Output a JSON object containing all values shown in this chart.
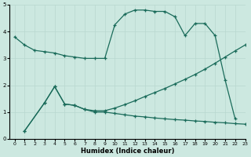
{
  "xlabel": "Humidex (Indice chaleur)",
  "xlim": [
    -0.5,
    23
  ],
  "ylim": [
    0,
    5
  ],
  "xticks": [
    0,
    1,
    2,
    3,
    4,
    5,
    6,
    7,
    8,
    9,
    10,
    11,
    12,
    13,
    14,
    15,
    16,
    17,
    18,
    19,
    20,
    21,
    22,
    23
  ],
  "yticks": [
    0,
    1,
    2,
    3,
    4,
    5
  ],
  "bg_color": "#cce8e0",
  "line_color": "#1a6b5a",
  "grid_color": "#b8d8cf",
  "line1": {
    "x": [
      0,
      1,
      2,
      3,
      4,
      5,
      6,
      7,
      8,
      9,
      10,
      11,
      12,
      13,
      14,
      15,
      16,
      17,
      18,
      19,
      20,
      21,
      22
    ],
    "y": [
      3.8,
      3.5,
      3.3,
      3.25,
      3.2,
      3.1,
      3.05,
      3.0,
      3.0,
      3.0,
      4.25,
      4.65,
      4.8,
      4.8,
      4.75,
      4.75,
      4.55,
      3.85,
      4.3,
      4.3,
      3.85,
      2.2,
      0.75
    ]
  },
  "line2": {
    "x": [
      1,
      3,
      4,
      5,
      6,
      7,
      8,
      9,
      10,
      11,
      12,
      13,
      14,
      15,
      16,
      17,
      18,
      19,
      20,
      21,
      22,
      23
    ],
    "y": [
      0.3,
      1.35,
      1.95,
      1.3,
      1.25,
      1.1,
      1.05,
      1.05,
      1.15,
      1.28,
      1.42,
      1.58,
      1.73,
      1.88,
      2.05,
      2.22,
      2.4,
      2.6,
      2.82,
      3.05,
      3.28,
      3.5
    ]
  },
  "line3": {
    "x": [
      1,
      3,
      4,
      5,
      6,
      7,
      8,
      9,
      10,
      11,
      12,
      13,
      14,
      15,
      16,
      17,
      18,
      19,
      20,
      21,
      22,
      23
    ],
    "y": [
      0.3,
      1.35,
      1.95,
      1.3,
      1.25,
      1.1,
      1.0,
      1.0,
      0.95,
      0.9,
      0.85,
      0.82,
      0.78,
      0.75,
      0.72,
      0.7,
      0.67,
      0.65,
      0.62,
      0.6,
      0.57,
      0.55
    ]
  }
}
